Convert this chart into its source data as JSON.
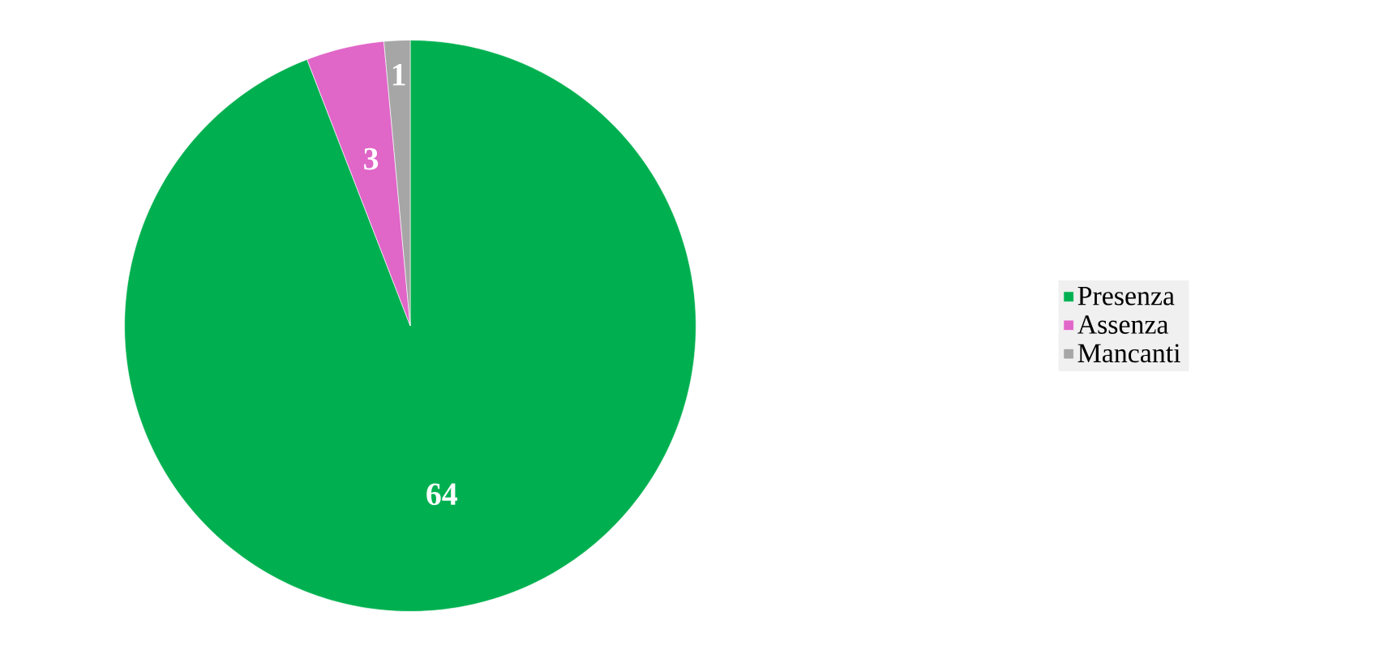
{
  "chart_data": {
    "type": "pie",
    "categories": [
      "Presenza",
      "Assenza",
      "Mancanti"
    ],
    "values": [
      64,
      3,
      1
    ],
    "colors": [
      "#00b050",
      "#e066c8",
      "#a6a6a6"
    ],
    "data_labels": true,
    "legend": "right"
  }
}
